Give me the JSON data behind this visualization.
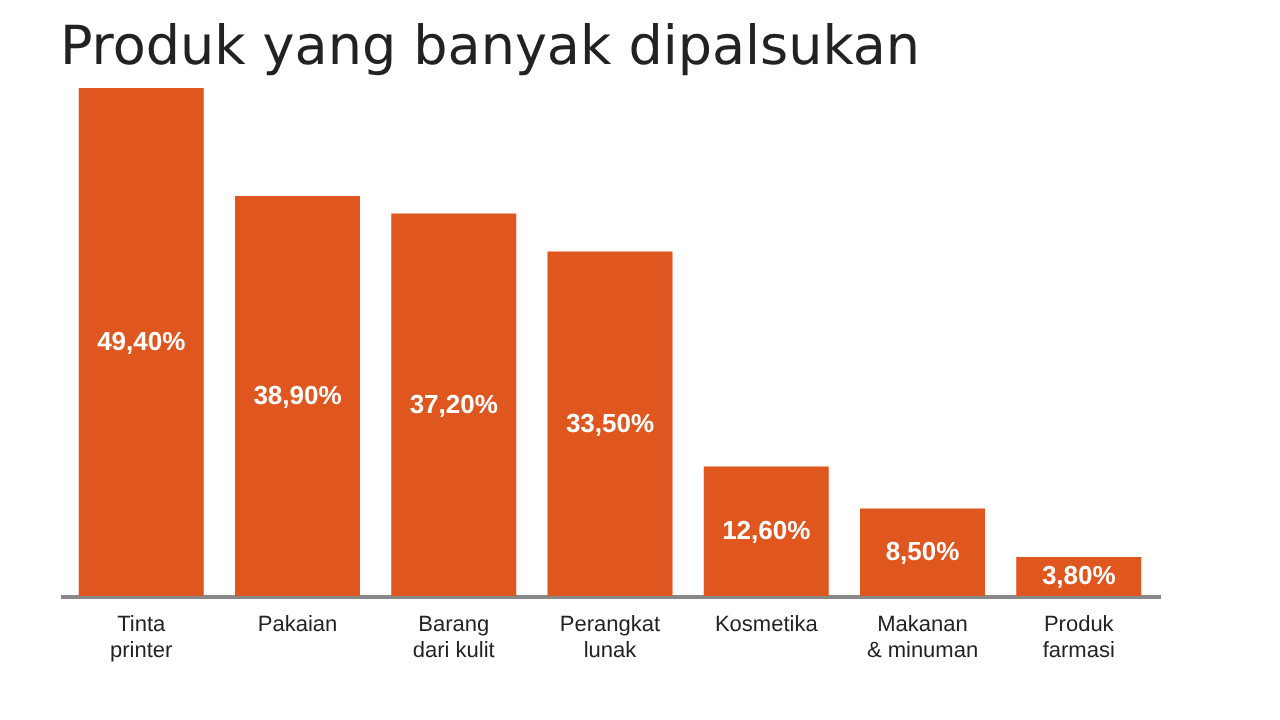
{
  "chart_data": {
    "type": "bar",
    "title": "Produk yang banyak dipalsukan",
    "categories": [
      "Tinta\nprinter",
      "Pakaian",
      "Barang\ndari kulit",
      "Perangkat\nlunak",
      "Kosmetika",
      "Makanan\n& minuman",
      "Produk\nfarmasi"
    ],
    "values": [
      49.4,
      38.9,
      37.2,
      33.5,
      12.6,
      8.5,
      3.8
    ],
    "value_labels": [
      "49,40%",
      "38,90%",
      "37,20%",
      "33,50%",
      "12,60%",
      "8,50%",
      "3,80%"
    ],
    "color": "#e0561f"
  }
}
